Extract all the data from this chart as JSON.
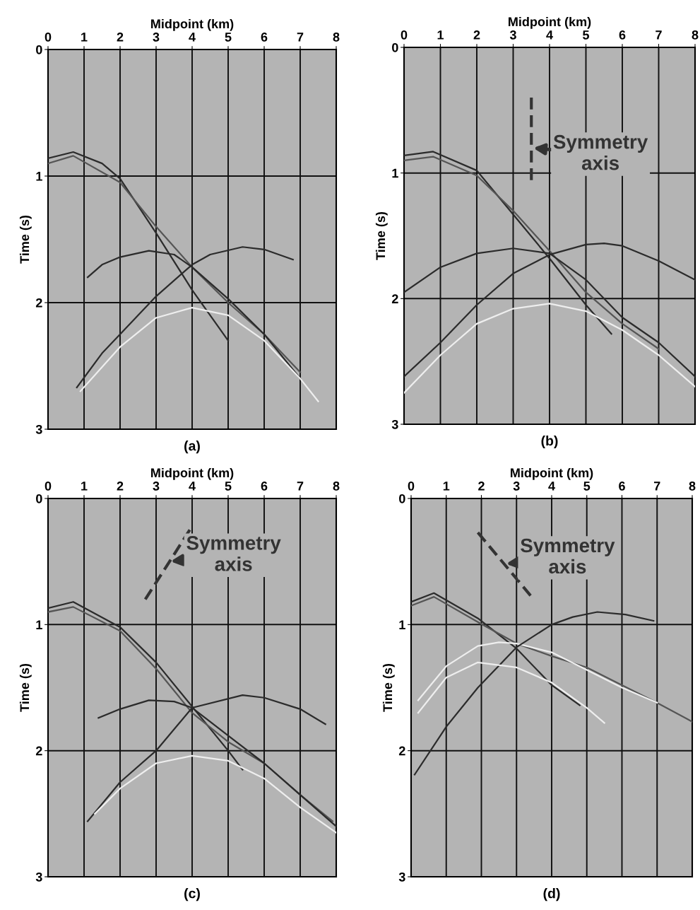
{
  "chart_data": [
    {
      "type": "line",
      "xlabel": "Midpoint (km)",
      "ylabel": "Time (s)",
      "xlim": [
        0,
        8
      ],
      "ylim": [
        3,
        0
      ],
      "xticks": [
        0,
        1,
        2,
        3,
        4,
        5,
        6,
        7,
        8
      ],
      "yticks": [
        0,
        1,
        2,
        3
      ],
      "grid": true,
      "annotations": [
        "(a)"
      ],
      "series": [
        {
          "color": "#2b2b2b",
          "x": [
            0,
            0.7,
            1.5,
            2,
            3,
            4,
            5
          ],
          "values": [
            0.86,
            0.81,
            0.9,
            1.02,
            1.45,
            1.9,
            2.3
          ]
        },
        {
          "color": "#555555",
          "x": [
            0,
            0.7,
            2,
            3,
            4,
            5,
            6,
            7
          ],
          "values": [
            0.9,
            0.84,
            1.05,
            1.4,
            1.72,
            2.0,
            2.25,
            2.55
          ]
        },
        {
          "color": "#2b2b2b",
          "x": [
            1.1,
            1.5,
            2,
            2.8,
            3.5,
            4,
            5,
            6,
            7
          ],
          "values": [
            1.8,
            1.7,
            1.64,
            1.59,
            1.62,
            1.72,
            1.97,
            2.25,
            2.6
          ]
        },
        {
          "color": "#2b2b2b",
          "x": [
            0.8,
            1.5,
            2,
            3,
            4,
            4.5,
            5.4,
            6,
            6.8
          ],
          "values": [
            2.67,
            2.4,
            2.25,
            1.95,
            1.7,
            1.62,
            1.56,
            1.58,
            1.66
          ]
        },
        {
          "color": "#eeeeee",
          "x": [
            0.9,
            2,
            3,
            4,
            5,
            6,
            7,
            7.5
          ],
          "values": [
            2.7,
            2.35,
            2.12,
            2.04,
            2.1,
            2.3,
            2.6,
            2.78
          ]
        }
      ]
    },
    {
      "type": "line",
      "xlabel": "Midpoint (km)",
      "ylabel": "Time (s)",
      "xlim": [
        0,
        8
      ],
      "ylim": [
        3,
        0
      ],
      "xticks": [
        0,
        1,
        2,
        3,
        4,
        5,
        6,
        7,
        8
      ],
      "yticks": [
        0,
        1,
        2,
        3
      ],
      "grid": true,
      "annotations": [
        {
          "text": "Symmetry axis",
          "x": 3.5,
          "y": 0.8
        },
        "(b)"
      ],
      "series": [
        {
          "color": "#2b2b2b",
          "x": [
            0,
            0.8,
            2,
            3,
            4,
            5,
            5.7
          ],
          "values": [
            0.86,
            0.83,
            0.98,
            1.33,
            1.68,
            2.05,
            2.28
          ]
        },
        {
          "color": "#555555",
          "x": [
            0,
            0.8,
            2,
            3,
            4,
            5,
            6,
            7
          ],
          "values": [
            0.9,
            0.87,
            1.02,
            1.3,
            1.62,
            1.95,
            2.2,
            2.4
          ]
        },
        {
          "color": "#2b2b2b",
          "x": [
            0,
            1,
            2,
            3,
            4,
            5,
            6,
            7,
            8
          ],
          "values": [
            1.95,
            1.75,
            1.64,
            1.6,
            1.64,
            1.85,
            2.15,
            2.35,
            2.62
          ]
        },
        {
          "color": "#2b2b2b",
          "x": [
            0,
            1,
            2,
            3,
            4,
            5,
            5.5,
            6,
            7,
            8
          ],
          "values": [
            2.62,
            2.35,
            2.05,
            1.8,
            1.65,
            1.57,
            1.56,
            1.58,
            1.7,
            1.85
          ]
        },
        {
          "color": "#eeeeee",
          "x": [
            0,
            1,
            2,
            3,
            4,
            5,
            6,
            7,
            8
          ],
          "values": [
            2.75,
            2.45,
            2.2,
            2.08,
            2.04,
            2.1,
            2.25,
            2.45,
            2.7
          ]
        },
        {
          "color": "#333333",
          "line_style": "dashed",
          "x": [
            3.5,
            3.5
          ],
          "values": [
            0.4,
            1.07
          ]
        }
      ]
    },
    {
      "type": "line",
      "xlabel": "Midpoint (km)",
      "ylabel": "Time (s)",
      "xlim": [
        0,
        8
      ],
      "ylim": [
        3,
        0
      ],
      "xticks": [
        0,
        1,
        2,
        3,
        4,
        5,
        6,
        7,
        8
      ],
      "yticks": [
        0,
        1,
        2,
        3
      ],
      "grid": true,
      "annotations": [
        {
          "text": "Symmetry axis",
          "x": 3.35,
          "y": 0.5
        },
        "(c)"
      ],
      "series": [
        {
          "color": "#2b2b2b",
          "x": [
            0,
            0.7,
            2,
            3,
            4,
            5,
            5.4
          ],
          "values": [
            0.87,
            0.82,
            1.02,
            1.3,
            1.65,
            2.0,
            2.15
          ]
        },
        {
          "color": "#555555",
          "x": [
            0,
            0.7,
            2,
            3,
            4,
            5,
            6,
            7,
            7.9
          ],
          "values": [
            0.9,
            0.86,
            1.05,
            1.35,
            1.7,
            1.93,
            2.1,
            2.35,
            2.56
          ]
        },
        {
          "color": "#2b2b2b",
          "x": [
            1.4,
            2,
            2.8,
            3.5,
            4,
            5,
            6,
            7,
            8
          ],
          "values": [
            1.74,
            1.67,
            1.6,
            1.61,
            1.66,
            1.88,
            2.1,
            2.35,
            2.6
          ]
        },
        {
          "color": "#2b2b2b",
          "x": [
            1.1,
            2,
            3,
            4,
            5.4,
            6,
            7,
            7.7
          ],
          "values": [
            2.56,
            2.25,
            2.0,
            1.66,
            1.56,
            1.58,
            1.67,
            1.79
          ]
        },
        {
          "color": "#eeeeee",
          "x": [
            1.3,
            2,
            3,
            4,
            5,
            6,
            7,
            8
          ],
          "values": [
            2.5,
            2.3,
            2.1,
            2.04,
            2.08,
            2.22,
            2.45,
            2.65
          ]
        },
        {
          "color": "#333333",
          "line_style": "dashed",
          "x": [
            2.7,
            4.0
          ],
          "values": [
            0.8,
            0.22
          ]
        }
      ]
    },
    {
      "type": "line",
      "xlabel": "Midpoint (km)",
      "ylabel": "Time (s)",
      "xlim": [
        0,
        8
      ],
      "ylim": [
        3,
        0
      ],
      "xticks": [
        0,
        1,
        2,
        3,
        4,
        5,
        6,
        7,
        8
      ],
      "yticks": [
        0,
        1,
        2,
        3
      ],
      "grid": true,
      "annotations": [
        {
          "text": "Symmetry axis",
          "x": 2.65,
          "y": 0.52
        },
        "(d)"
      ],
      "series": [
        {
          "color": "#2b2b2b",
          "x": [
            0,
            0.65,
            1.9,
            3,
            4,
            4.8
          ],
          "values": [
            0.82,
            0.75,
            0.95,
            1.19,
            1.48,
            1.64
          ]
        },
        {
          "color": "#555555",
          "x": [
            0,
            0.65,
            1.9,
            3,
            4,
            5,
            6,
            7,
            8
          ],
          "values": [
            0.85,
            0.78,
            0.98,
            1.15,
            1.25,
            1.34,
            1.48,
            1.62,
            1.77
          ]
        },
        {
          "color": "#eeeeee",
          "x": [
            0.2,
            1,
            1.9,
            2.5,
            3,
            4,
            5,
            6,
            7
          ],
          "values": [
            1.6,
            1.33,
            1.17,
            1.14,
            1.15,
            1.22,
            1.36,
            1.5,
            1.62
          ]
        },
        {
          "color": "#2b2b2b",
          "x": [
            0.1,
            1,
            1.9,
            3,
            4,
            4.6,
            5.3,
            6.1,
            6.9
          ],
          "values": [
            2.19,
            1.81,
            1.5,
            1.18,
            1.0,
            0.94,
            0.9,
            0.92,
            0.97
          ]
        },
        {
          "color": "#eeeeee",
          "x": [
            0.2,
            1,
            1.9,
            3,
            4,
            5,
            5.5
          ],
          "values": [
            1.7,
            1.42,
            1.3,
            1.34,
            1.46,
            1.66,
            1.78
          ]
        },
        {
          "color": "#333333",
          "line_style": "dashed",
          "x": [
            1.9,
            3.4
          ],
          "values": [
            0.27,
            0.77
          ]
        }
      ]
    }
  ]
}
